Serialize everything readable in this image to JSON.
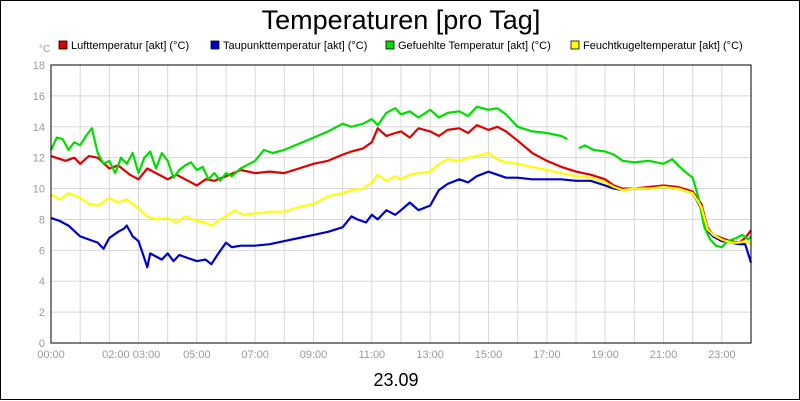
{
  "chart_data": {
    "type": "line",
    "title": "Temperaturen [pro Tag]",
    "y_unit_label": "°C",
    "date_label": "23.09",
    "ylim": [
      0,
      18
    ],
    "y_ticks": [
      "0",
      "2",
      "4",
      "6",
      "8",
      "10",
      "12",
      "14",
      "16",
      "18"
    ],
    "x_range_hours": [
      0,
      24
    ],
    "x_tick_labels": [
      {
        "h": 0,
        "label": "00:00"
      },
      {
        "h": 2.75,
        "label": "02:00 03:00"
      },
      {
        "h": 5,
        "label": "05:00"
      },
      {
        "h": 7,
        "label": "07:00"
      },
      {
        "h": 9,
        "label": "09:00"
      },
      {
        "h": 11,
        "label": "11:00"
      },
      {
        "h": 13,
        "label": "13:00"
      },
      {
        "h": 15,
        "label": "15:00"
      },
      {
        "h": 17,
        "label": "17:00"
      },
      {
        "h": 19,
        "label": "19:00"
      },
      {
        "h": 21,
        "label": "21:00"
      },
      {
        "h": 23,
        "label": "23:00"
      }
    ],
    "grid": true,
    "legend_position": "top",
    "series": [
      {
        "name": "Lufttemperatur [akt] (°C)",
        "color": "#e00000",
        "points": [
          [
            0,
            12.1
          ],
          [
            0.5,
            11.8
          ],
          [
            0.8,
            12.0
          ],
          [
            1.0,
            11.6
          ],
          [
            1.3,
            12.1
          ],
          [
            1.6,
            12.0
          ],
          [
            2.0,
            11.3
          ],
          [
            2.3,
            11.5
          ],
          [
            2.7,
            10.9
          ],
          [
            3.0,
            10.6
          ],
          [
            3.3,
            11.3
          ],
          [
            3.6,
            11.0
          ],
          [
            4.0,
            10.6
          ],
          [
            4.3,
            10.9
          ],
          [
            4.7,
            10.5
          ],
          [
            5.0,
            10.2
          ],
          [
            5.3,
            10.6
          ],
          [
            5.6,
            10.5
          ],
          [
            6.0,
            10.8
          ],
          [
            6.5,
            11.2
          ],
          [
            7.0,
            11.0
          ],
          [
            7.5,
            11.1
          ],
          [
            8.0,
            11.0
          ],
          [
            8.5,
            11.3
          ],
          [
            9.0,
            11.6
          ],
          [
            9.5,
            11.8
          ],
          [
            10.0,
            12.2
          ],
          [
            10.3,
            12.4
          ],
          [
            10.7,
            12.6
          ],
          [
            11.0,
            13.0
          ],
          [
            11.2,
            13.9
          ],
          [
            11.5,
            13.4
          ],
          [
            11.8,
            13.6
          ],
          [
            12.0,
            13.7
          ],
          [
            12.3,
            13.3
          ],
          [
            12.6,
            13.9
          ],
          [
            13.0,
            13.7
          ],
          [
            13.3,
            13.4
          ],
          [
            13.6,
            13.8
          ],
          [
            14.0,
            13.9
          ],
          [
            14.3,
            13.6
          ],
          [
            14.6,
            14.1
          ],
          [
            15.0,
            13.8
          ],
          [
            15.3,
            14.0
          ],
          [
            15.6,
            13.7
          ],
          [
            16.0,
            13.1
          ],
          [
            16.5,
            12.3
          ],
          [
            17.0,
            11.8
          ],
          [
            17.5,
            11.4
          ],
          [
            18.0,
            11.1
          ],
          [
            18.5,
            10.9
          ],
          [
            19.0,
            10.6
          ],
          [
            19.3,
            10.2
          ],
          [
            19.6,
            10.0
          ],
          [
            20.0,
            10.0
          ],
          [
            20.5,
            10.1
          ],
          [
            21.0,
            10.2
          ],
          [
            21.5,
            10.1
          ],
          [
            22.0,
            9.8
          ],
          [
            22.3,
            9.0
          ],
          [
            22.5,
            7.5
          ],
          [
            22.7,
            7.0
          ],
          [
            23.0,
            6.8
          ],
          [
            23.3,
            6.6
          ],
          [
            23.6,
            6.5
          ],
          [
            23.8,
            6.8
          ],
          [
            24.0,
            7.3
          ]
        ]
      },
      {
        "name": "Taupunkttemperatur [akt] (°C)",
        "color": "#0000cc",
        "points": [
          [
            0,
            8.1
          ],
          [
            0.3,
            7.9
          ],
          [
            0.6,
            7.6
          ],
          [
            1.0,
            6.9
          ],
          [
            1.3,
            6.7
          ],
          [
            1.6,
            6.5
          ],
          [
            1.8,
            6.1
          ],
          [
            2.0,
            6.8
          ],
          [
            2.3,
            7.2
          ],
          [
            2.5,
            7.4
          ],
          [
            2.6,
            7.6
          ],
          [
            2.8,
            6.9
          ],
          [
            3.0,
            6.6
          ],
          [
            3.2,
            5.5
          ],
          [
            3.3,
            4.9
          ],
          [
            3.4,
            5.8
          ],
          [
            3.6,
            5.6
          ],
          [
            3.8,
            5.4
          ],
          [
            4.0,
            5.8
          ],
          [
            4.2,
            5.3
          ],
          [
            4.4,
            5.7
          ],
          [
            4.7,
            5.5
          ],
          [
            5.0,
            5.3
          ],
          [
            5.3,
            5.4
          ],
          [
            5.5,
            5.1
          ],
          [
            5.7,
            5.7
          ],
          [
            6.0,
            6.5
          ],
          [
            6.2,
            6.2
          ],
          [
            6.5,
            6.3
          ],
          [
            7.0,
            6.3
          ],
          [
            7.5,
            6.4
          ],
          [
            8.0,
            6.6
          ],
          [
            8.5,
            6.8
          ],
          [
            9.0,
            7.0
          ],
          [
            9.5,
            7.2
          ],
          [
            10.0,
            7.5
          ],
          [
            10.3,
            8.2
          ],
          [
            10.5,
            8.0
          ],
          [
            10.8,
            7.8
          ],
          [
            11.0,
            8.3
          ],
          [
            11.2,
            8.0
          ],
          [
            11.5,
            8.6
          ],
          [
            11.8,
            8.3
          ],
          [
            12.0,
            8.6
          ],
          [
            12.3,
            9.1
          ],
          [
            12.6,
            8.6
          ],
          [
            13.0,
            8.9
          ],
          [
            13.3,
            9.9
          ],
          [
            13.6,
            10.3
          ],
          [
            14.0,
            10.6
          ],
          [
            14.3,
            10.4
          ],
          [
            14.6,
            10.8
          ],
          [
            15.0,
            11.1
          ],
          [
            15.3,
            10.9
          ],
          [
            15.6,
            10.7
          ],
          [
            16.0,
            10.7
          ],
          [
            16.5,
            10.6
          ],
          [
            17.0,
            10.6
          ],
          [
            17.5,
            10.6
          ],
          [
            18.0,
            10.5
          ],
          [
            18.5,
            10.5
          ],
          [
            19.0,
            10.2
          ],
          [
            19.3,
            10.0
          ],
          [
            19.6,
            9.9
          ],
          [
            20.0,
            10.0
          ],
          [
            20.5,
            10.0
          ],
          [
            21.0,
            10.1
          ],
          [
            21.5,
            10.0
          ],
          [
            22.0,
            9.7
          ],
          [
            22.3,
            8.7
          ],
          [
            22.5,
            7.3
          ],
          [
            22.7,
            6.9
          ],
          [
            23.0,
            6.6
          ],
          [
            23.3,
            6.5
          ],
          [
            23.6,
            6.4
          ],
          [
            23.8,
            6.4
          ],
          [
            24.0,
            5.2
          ]
        ]
      },
      {
        "name": "Gefuehlte Temperatur [akt] (°C)",
        "color": "#00dd00",
        "points": [
          [
            0,
            12.5
          ],
          [
            0.2,
            13.3
          ],
          [
            0.4,
            13.2
          ],
          [
            0.6,
            12.5
          ],
          [
            0.8,
            13.0
          ],
          [
            1.0,
            12.8
          ],
          [
            1.2,
            13.4
          ],
          [
            1.4,
            13.9
          ],
          [
            1.6,
            12.3
          ],
          [
            1.8,
            11.6
          ],
          [
            2.0,
            11.8
          ],
          [
            2.2,
            11.0
          ],
          [
            2.4,
            12.0
          ],
          [
            2.6,
            11.6
          ],
          [
            2.8,
            12.3
          ],
          [
            3.0,
            11.0
          ],
          [
            3.2,
            12.0
          ],
          [
            3.4,
            12.4
          ],
          [
            3.6,
            11.3
          ],
          [
            3.8,
            12.3
          ],
          [
            4.0,
            11.8
          ],
          [
            4.2,
            10.7
          ],
          [
            4.4,
            11.2
          ],
          [
            4.6,
            11.5
          ],
          [
            4.8,
            11.7
          ],
          [
            5.0,
            11.2
          ],
          [
            5.2,
            11.4
          ],
          [
            5.4,
            10.6
          ],
          [
            5.6,
            11.0
          ],
          [
            5.8,
            10.5
          ],
          [
            6.0,
            11.0
          ],
          [
            6.2,
            10.8
          ],
          [
            6.5,
            11.3
          ],
          [
            7.0,
            11.8
          ],
          [
            7.3,
            12.5
          ],
          [
            7.6,
            12.3
          ],
          [
            8.0,
            12.5
          ],
          [
            8.5,
            12.9
          ],
          [
            9.0,
            13.3
          ],
          [
            9.5,
            13.7
          ],
          [
            10.0,
            14.2
          ],
          [
            10.3,
            14.0
          ],
          [
            10.7,
            14.2
          ],
          [
            11.0,
            14.5
          ],
          [
            11.2,
            14.1
          ],
          [
            11.5,
            14.9
          ],
          [
            11.8,
            15.2
          ],
          [
            12.0,
            14.8
          ],
          [
            12.3,
            15.0
          ],
          [
            12.6,
            14.6
          ],
          [
            13.0,
            15.1
          ],
          [
            13.3,
            14.6
          ],
          [
            13.6,
            14.9
          ],
          [
            14.0,
            15.0
          ],
          [
            14.3,
            14.7
          ],
          [
            14.6,
            15.3
          ],
          [
            15.0,
            15.1
          ],
          [
            15.3,
            15.2
          ],
          [
            15.6,
            14.8
          ],
          [
            16.0,
            14.0
          ],
          [
            16.5,
            13.7
          ],
          [
            17.0,
            13.6
          ],
          [
            17.5,
            13.4
          ],
          [
            17.7,
            13.2
          ],
          [
            18.0,
            null
          ],
          [
            18.1,
            12.6
          ],
          [
            18.3,
            12.8
          ],
          [
            18.6,
            12.5
          ],
          [
            19.0,
            12.4
          ],
          [
            19.3,
            12.2
          ],
          [
            19.6,
            11.8
          ],
          [
            20.0,
            11.7
          ],
          [
            20.5,
            11.8
          ],
          [
            21.0,
            11.6
          ],
          [
            21.3,
            11.9
          ],
          [
            21.5,
            11.5
          ],
          [
            21.8,
            11.0
          ],
          [
            22.0,
            10.7
          ],
          [
            22.2,
            9.4
          ],
          [
            22.4,
            7.5
          ],
          [
            22.6,
            6.7
          ],
          [
            22.8,
            6.3
          ],
          [
            23.0,
            6.2
          ],
          [
            23.2,
            6.6
          ],
          [
            23.5,
            6.8
          ],
          [
            23.7,
            7.0
          ],
          [
            23.9,
            6.7
          ],
          [
            24.0,
            6.9
          ]
        ]
      },
      {
        "name": "Feuchtkugeltemperatur [akt] (°C)",
        "color": "#ffff00",
        "points": [
          [
            0,
            9.6
          ],
          [
            0.3,
            9.3
          ],
          [
            0.6,
            9.7
          ],
          [
            1.0,
            9.4
          ],
          [
            1.3,
            9.0
          ],
          [
            1.6,
            8.9
          ],
          [
            2.0,
            9.4
          ],
          [
            2.3,
            9.1
          ],
          [
            2.6,
            9.3
          ],
          [
            3.0,
            8.7
          ],
          [
            3.3,
            8.2
          ],
          [
            3.6,
            8.0
          ],
          [
            4.0,
            8.1
          ],
          [
            4.3,
            7.8
          ],
          [
            4.6,
            8.2
          ],
          [
            5.0,
            7.9
          ],
          [
            5.3,
            7.8
          ],
          [
            5.5,
            7.6
          ],
          [
            5.8,
            8.0
          ],
          [
            6.0,
            8.2
          ],
          [
            6.3,
            8.6
          ],
          [
            6.6,
            8.3
          ],
          [
            7.0,
            8.4
          ],
          [
            7.5,
            8.5
          ],
          [
            8.0,
            8.5
          ],
          [
            8.5,
            8.8
          ],
          [
            9.0,
            9.0
          ],
          [
            9.5,
            9.5
          ],
          [
            10.0,
            9.7
          ],
          [
            10.3,
            9.9
          ],
          [
            10.7,
            10.0
          ],
          [
            11.0,
            10.4
          ],
          [
            11.2,
            10.9
          ],
          [
            11.5,
            10.5
          ],
          [
            11.8,
            10.8
          ],
          [
            12.0,
            10.6
          ],
          [
            12.3,
            10.9
          ],
          [
            12.6,
            11.0
          ],
          [
            13.0,
            11.1
          ],
          [
            13.3,
            11.6
          ],
          [
            13.6,
            11.9
          ],
          [
            14.0,
            11.8
          ],
          [
            14.3,
            12.0
          ],
          [
            14.6,
            12.1
          ],
          [
            15.0,
            12.3
          ],
          [
            15.3,
            11.9
          ],
          [
            15.6,
            11.7
          ],
          [
            16.0,
            11.6
          ],
          [
            16.5,
            11.4
          ],
          [
            17.0,
            11.2
          ],
          [
            17.5,
            11.0
          ],
          [
            18.0,
            10.8
          ],
          [
            18.5,
            10.7
          ],
          [
            19.0,
            10.4
          ],
          [
            19.3,
            10.1
          ],
          [
            19.6,
            9.9
          ],
          [
            20.0,
            10.0
          ],
          [
            20.5,
            10.0
          ],
          [
            21.0,
            10.1
          ],
          [
            21.5,
            10.0
          ],
          [
            22.0,
            9.7
          ],
          [
            22.3,
            8.8
          ],
          [
            22.5,
            7.4
          ],
          [
            22.7,
            7.0
          ],
          [
            23.0,
            6.7
          ],
          [
            23.3,
            6.5
          ],
          [
            23.6,
            6.5
          ],
          [
            23.8,
            6.6
          ],
          [
            24.0,
            6.4
          ]
        ]
      }
    ]
  }
}
